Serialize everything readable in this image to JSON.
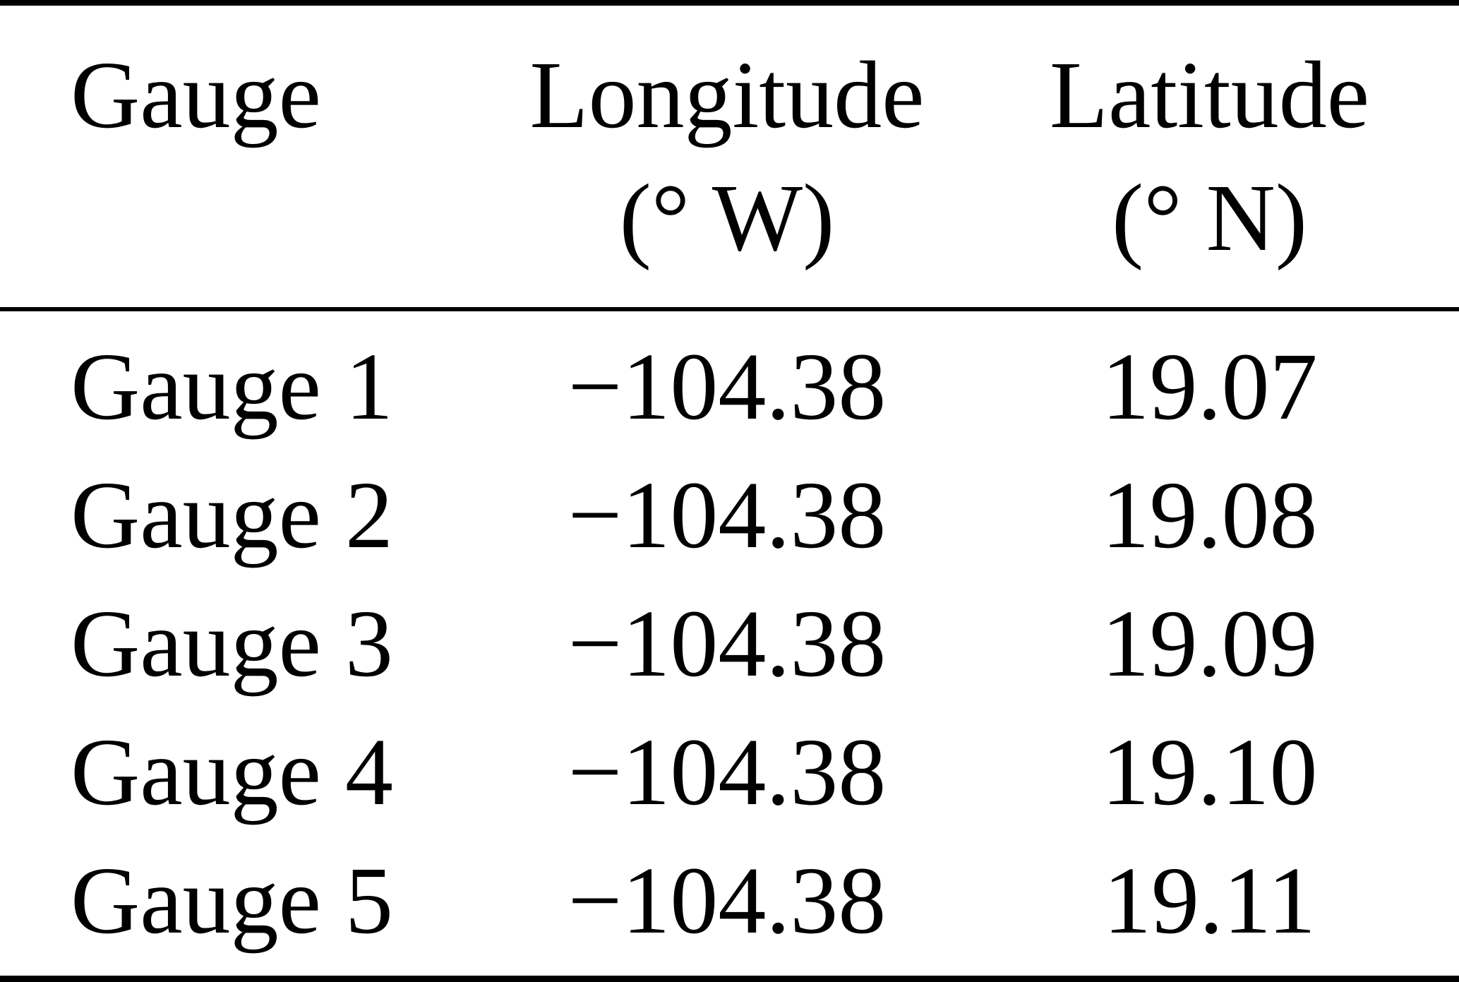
{
  "table": {
    "columns": {
      "gauge": {
        "label": "Gauge",
        "unit": ""
      },
      "longitude": {
        "label": "Longitude",
        "unit": "(° W)"
      },
      "latitude": {
        "label": "Latitude",
        "unit": "(° N)"
      }
    },
    "rows": [
      {
        "gauge": "Gauge 1",
        "longitude": "−104.38",
        "latitude": "19.07"
      },
      {
        "gauge": "Gauge 2",
        "longitude": "−104.38",
        "latitude": "19.08"
      },
      {
        "gauge": "Gauge 3",
        "longitude": "−104.38",
        "latitude": "19.09"
      },
      {
        "gauge": "Gauge 4",
        "longitude": "−104.38",
        "latitude": "19.10"
      },
      {
        "gauge": "Gauge 5",
        "longitude": "−104.38",
        "latitude": "19.11"
      }
    ]
  },
  "chart_data": {
    "type": "table",
    "title": "",
    "columns": [
      "Gauge",
      "Longitude (° W)",
      "Latitude (° N)"
    ],
    "rows": [
      [
        "Gauge 1",
        -104.38,
        19.07
      ],
      [
        "Gauge 2",
        -104.38,
        19.08
      ],
      [
        "Gauge 3",
        -104.38,
        19.09
      ],
      [
        "Gauge 4",
        -104.38,
        19.1
      ],
      [
        "Gauge 5",
        -104.38,
        19.11
      ]
    ]
  }
}
